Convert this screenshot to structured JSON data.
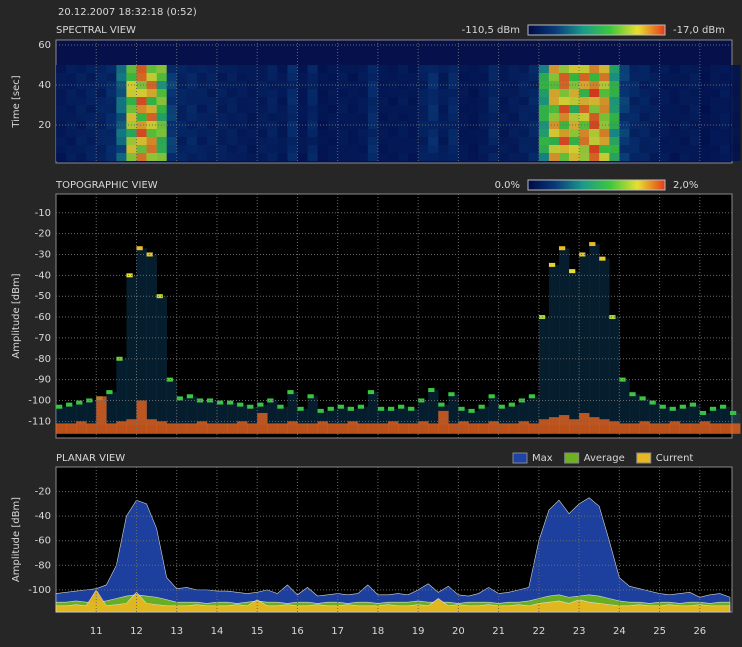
{
  "header": {
    "timestamp": "20.12.2007 18:32:18 (0:52)"
  },
  "chart_data": [
    {
      "type": "heatmap",
      "title": "SPECTRAL VIEW",
      "y_label": "Time [sec]",
      "xlim": [
        10,
        26.8
      ],
      "xticks": [
        11,
        12,
        13,
        14,
        15,
        16,
        17,
        18,
        19,
        20,
        21,
        22,
        23,
        24,
        25,
        26
      ],
      "ylim": [
        1,
        62.5
      ],
      "yticks": [
        20,
        40,
        60
      ],
      "grid": true,
      "scale_min_label": "-110,5 dBm",
      "scale_max_label": "-17,0 dBm",
      "colormap": [
        "#000a46",
        "#0a3a7a",
        "#1a9a8a",
        "#3cc83c",
        "#e8e030",
        "#e83a1a"
      ]
    },
    {
      "type": "heatmap",
      "title": "TOPOGRAPHIC VIEW",
      "y_label": "Amplitude [dBm]",
      "xlim": [
        10,
        26.8
      ],
      "xticks": [
        11,
        12,
        13,
        14,
        15,
        16,
        17,
        18,
        19,
        20,
        21,
        22,
        23,
        24,
        25,
        26
      ],
      "ylim": [
        -118,
        -1
      ],
      "yticks": [
        -110,
        -100,
        -90,
        -80,
        -70,
        -60,
        -50,
        -40,
        -30,
        -20,
        -10
      ],
      "grid": true,
      "scale_min_label": "0.0%",
      "scale_max_label": "2,0%",
      "colormap": [
        "#000a46",
        "#0a3a7a",
        "#1a9a8a",
        "#3cc83c",
        "#e8e030",
        "#e83a1a"
      ]
    },
    {
      "type": "area",
      "title": "PLANAR VIEW",
      "y_label": "Amplitude [dBm]",
      "xlim": [
        10,
        26.8
      ],
      "xticks": [
        11,
        12,
        13,
        14,
        15,
        16,
        17,
        18,
        19,
        20,
        21,
        22,
        23,
        24,
        25,
        26
      ],
      "ylim": [
        -118,
        0
      ],
      "yticks": [
        -100,
        -80,
        -60,
        -40,
        -20
      ],
      "grid": true,
      "legend": "top-right",
      "x": [
        10,
        10.25,
        10.5,
        10.75,
        11,
        11.25,
        11.5,
        11.75,
        12,
        12.25,
        12.5,
        12.75,
        13,
        13.25,
        13.5,
        13.75,
        14,
        14.25,
        14.5,
        14.75,
        15,
        15.25,
        15.5,
        15.75,
        16,
        16.25,
        16.5,
        16.75,
        17,
        17.25,
        17.5,
        17.75,
        18,
        18.25,
        18.5,
        18.75,
        19,
        19.25,
        19.5,
        19.75,
        20,
        20.25,
        20.5,
        20.75,
        21,
        21.25,
        21.5,
        21.75,
        22,
        22.25,
        22.5,
        22.75,
        23,
        23.25,
        23.5,
        23.75,
        24,
        24.25,
        24.5,
        24.75,
        25,
        25.25,
        25.5,
        25.75,
        26,
        26.25,
        26.5,
        26.75
      ],
      "series": [
        {
          "name": "Max",
          "color": "#1f44a8",
          "values": [
            -103,
            -102,
            -101,
            -100,
            -99,
            -96,
            -80,
            -40,
            -27,
            -30,
            -50,
            -90,
            -99,
            -98,
            -100,
            -100,
            -101,
            -101,
            -102,
            -103,
            -102,
            -100,
            -103,
            -96,
            -104,
            -98,
            -105,
            -104,
            -103,
            -104,
            -103,
            -96,
            -104,
            -104,
            -103,
            -104,
            -100,
            -95,
            -102,
            -97,
            -104,
            -105,
            -103,
            -98,
            -103,
            -102,
            -100,
            -98,
            -60,
            -35,
            -27,
            -38,
            -30,
            -25,
            -32,
            -60,
            -90,
            -97,
            -99,
            -101,
            -103,
            -104,
            -103,
            -102,
            -106,
            -104,
            -103,
            -106
          ]
        },
        {
          "name": "Average",
          "color": "#6cb41e",
          "values": [
            -110,
            -110,
            -109,
            -110,
            -110,
            -109,
            -107,
            -105,
            -104,
            -105,
            -106,
            -108,
            -110,
            -110,
            -110,
            -111,
            -110,
            -110,
            -111,
            -110,
            -109,
            -110,
            -110,
            -111,
            -110,
            -110,
            -111,
            -110,
            -110,
            -111,
            -110,
            -110,
            -111,
            -110,
            -110,
            -110,
            -109,
            -110,
            -110,
            -110,
            -111,
            -110,
            -110,
            -110,
            -111,
            -110,
            -110,
            -109,
            -107,
            -105,
            -104,
            -106,
            -105,
            -104,
            -105,
            -107,
            -109,
            -110,
            -110,
            -111,
            -110,
            -110,
            -111,
            -110,
            -110,
            -111,
            -110,
            -110
          ]
        },
        {
          "name": "Current",
          "color": "#e8b820",
          "values": [
            -113,
            -113,
            -112,
            -113,
            -100,
            -113,
            -112,
            -111,
            -102,
            -111,
            -112,
            -113,
            -113,
            -113,
            -112,
            -113,
            -113,
            -113,
            -112,
            -113,
            -108,
            -113,
            -113,
            -112,
            -113,
            -113,
            -112,
            -113,
            -113,
            -112,
            -113,
            -113,
            -113,
            -112,
            -113,
            -113,
            -112,
            -113,
            -107,
            -113,
            -112,
            -113,
            -113,
            -112,
            -113,
            -113,
            -112,
            -113,
            -111,
            -110,
            -109,
            -111,
            -108,
            -110,
            -111,
            -112,
            -113,
            -113,
            -112,
            -113,
            -113,
            -112,
            -113,
            -113,
            -112,
            -113,
            -113,
            -113
          ]
        }
      ]
    }
  ]
}
